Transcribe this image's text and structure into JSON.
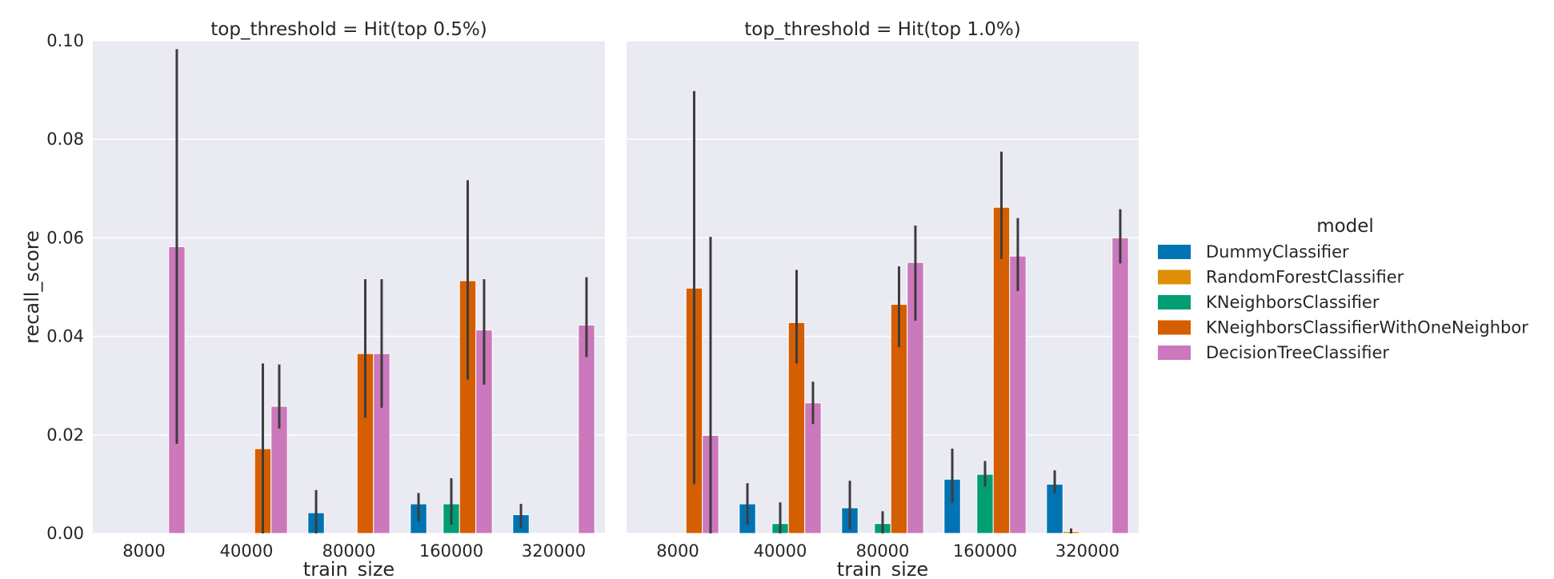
{
  "chart_data": {
    "type": "bar",
    "ylabel": "recall_score",
    "xlabel": "train_size",
    "ylim": [
      0,
      0.1
    ],
    "yticks": [
      "0.00",
      "0.02",
      "0.04",
      "0.06",
      "0.08",
      "0.10"
    ],
    "ytick_values": [
      0,
      0.02,
      0.04,
      0.06,
      0.08,
      0.1
    ],
    "grid": true,
    "legend_position": "right",
    "legend": {
      "title": "model",
      "entries": [
        {
          "label": "DummyClassifier",
          "color": "#0173b2"
        },
        {
          "label": "RandomForestClassifier",
          "color": "#de8f05"
        },
        {
          "label": "KNeighborsClassifier",
          "color": "#029e73"
        },
        {
          "label": "KNeighborsClassifierWithOneNeighbor",
          "color": "#d55e00"
        },
        {
          "label": "DecisionTreeClassifier",
          "color": "#cc78bc"
        }
      ]
    },
    "categories": [
      "8000",
      "40000",
      "80000",
      "160000",
      "320000"
    ],
    "panels": [
      {
        "title": "top_threshold = Hit(top 0.5%)",
        "series": [
          {
            "name": "DummyClassifier",
            "values": [
              0,
              0,
              0.0042,
              0.006,
              0.0038
            ],
            "err_low": [
              null,
              null,
              0,
              0.0025,
              0.001
            ],
            "err_high": [
              null,
              null,
              0.0088,
              0.0082,
              0.006
            ]
          },
          {
            "name": "RandomForestClassifier",
            "values": [
              0,
              0,
              0,
              0,
              0
            ],
            "err_low": [
              null,
              null,
              null,
              null,
              null
            ],
            "err_high": [
              null,
              null,
              null,
              null,
              null
            ]
          },
          {
            "name": "KNeighborsClassifier",
            "values": [
              0,
              0,
              0,
              0.006,
              0
            ],
            "err_low": [
              null,
              null,
              null,
              0.0018,
              null
            ],
            "err_high": [
              null,
              null,
              null,
              0.0112,
              null
            ]
          },
          {
            "name": "KNeighborsClassifierWithOneNeighbor",
            "values": [
              0,
              0.0172,
              0.0365,
              0.0513,
              0
            ],
            "err_low": [
              null,
              0,
              0.0235,
              0.0312,
              null
            ],
            "err_high": [
              null,
              0.0345,
              0.0516,
              0.0717,
              null
            ]
          },
          {
            "name": "DecisionTreeClassifier",
            "values": [
              0.0582,
              0.0258,
              0.0365,
              0.0413,
              0.0423
            ],
            "err_low": [
              0.0182,
              0.0213,
              0.0255,
              0.0302,
              0.0358
            ],
            "err_high": [
              0.0983,
              0.0343,
              0.0516,
              0.0516,
              0.052
            ]
          }
        ]
      },
      {
        "title": "top_threshold = Hit(top 1.0%)",
        "series": [
          {
            "name": "DummyClassifier",
            "values": [
              0,
              0.006,
              0.0052,
              0.011,
              0.01
            ],
            "err_low": [
              null,
              0.0018,
              0.0008,
              0.0062,
              0.0082
            ],
            "err_high": [
              null,
              0.0102,
              0.0107,
              0.0172,
              0.0128
            ]
          },
          {
            "name": "RandomForestClassifier",
            "values": [
              0,
              0,
              0,
              0,
              0.0004
            ],
            "err_low": [
              null,
              null,
              null,
              null,
              0
            ],
            "err_high": [
              null,
              null,
              null,
              null,
              0.001
            ]
          },
          {
            "name": "KNeighborsClassifier",
            "values": [
              0,
              0.002,
              0.002,
              0.012,
              0
            ],
            "err_low": [
              null,
              0,
              0,
              0.0095,
              null
            ],
            "err_high": [
              null,
              0.0063,
              0.0045,
              0.0147,
              null
            ]
          },
          {
            "name": "KNeighborsClassifierWithOneNeighbor",
            "values": [
              0.0498,
              0.0428,
              0.0465,
              0.0662,
              0
            ],
            "err_low": [
              0.01,
              0.0345,
              0.0378,
              0.0557,
              null
            ],
            "err_high": [
              0.0898,
              0.0535,
              0.0542,
              0.0775,
              null
            ]
          },
          {
            "name": "DecisionTreeClassifier",
            "values": [
              0.0199,
              0.0265,
              0.055,
              0.0563,
              0.06
            ],
            "err_low": [
              0,
              0.0222,
              0.0432,
              0.0492,
              0.0548
            ],
            "err_high": [
              0.0602,
              0.0308,
              0.0625,
              0.064,
              0.0658
            ]
          }
        ]
      }
    ]
  }
}
